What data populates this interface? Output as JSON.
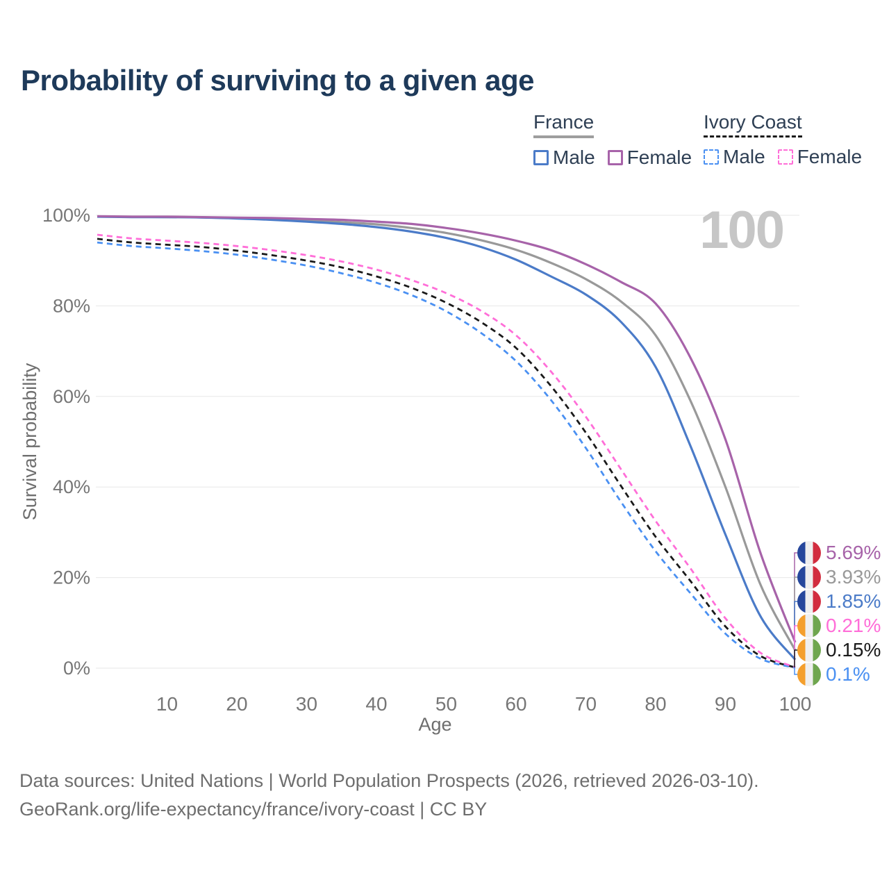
{
  "header": {
    "title": "Probability of surviving to a given age"
  },
  "legend": {
    "groups": [
      {
        "label": "France",
        "line_style": "solid",
        "underline_color": "#9e9e9e",
        "items": [
          {
            "label": "Male",
            "color": "#4b7bc8"
          },
          {
            "label": "Female",
            "color": "#a763a9"
          }
        ]
      },
      {
        "label": "Ivory Coast",
        "line_style": "dashed",
        "underline_color": "#1a1a1a",
        "items": [
          {
            "label": "Male",
            "color": "#4a90f2"
          },
          {
            "label": "Female",
            "color": "#ff6ed8"
          }
        ]
      }
    ]
  },
  "flags": {
    "FR": [
      "#26479c",
      "#efefef",
      "#d22d3f"
    ],
    "CI": [
      "#f49f2d",
      "#efefef",
      "#6fa64f"
    ]
  },
  "chart_data": {
    "type": "line",
    "title": "Probability of surviving to a given age",
    "xlabel": "Age",
    "ylabel": "Survival probability",
    "xlim": [
      0,
      100
    ],
    "ylim": [
      0,
      100
    ],
    "grid": "horizontal",
    "legend_position": "top-right",
    "hover_age_label": "100",
    "x_ticks": [
      10,
      20,
      30,
      40,
      50,
      60,
      70,
      80,
      90,
      100
    ],
    "y_ticks": [
      {
        "value": 0,
        "label": "0%"
      },
      {
        "value": 20,
        "label": "20%"
      },
      {
        "value": 40,
        "label": "40%"
      },
      {
        "value": 60,
        "label": "60%"
      },
      {
        "value": 80,
        "label": "80%"
      },
      {
        "value": 100,
        "label": "100%"
      }
    ],
    "x": [
      0,
      5,
      10,
      15,
      20,
      25,
      30,
      35,
      40,
      45,
      50,
      55,
      60,
      65,
      70,
      75,
      80,
      85,
      90,
      95,
      100
    ],
    "series": [
      {
        "name": "France Both sexes",
        "country": "France",
        "sex": "Both sexes",
        "color": "#999999",
        "dash": "solid",
        "flag": "FR",
        "end_label": "3.93%",
        "values": [
          99.75,
          99.65,
          99.6,
          99.55,
          99.4,
          99.2,
          98.9,
          98.5,
          98.0,
          97.2,
          96.1,
          94.5,
          92.4,
          89.5,
          85.9,
          81.0,
          73.5,
          59.0,
          40.0,
          18.5,
          3.93
        ]
      },
      {
        "name": "France Male",
        "country": "France",
        "sex": "Male",
        "color": "#4b7bc8",
        "dash": "solid",
        "flag": "FR",
        "end_label": "1.85%",
        "values": [
          99.7,
          99.6,
          99.6,
          99.5,
          99.3,
          99.0,
          98.6,
          98.1,
          97.4,
          96.4,
          95.0,
          93.0,
          90.2,
          86.5,
          82.5,
          76.5,
          66.5,
          49.0,
          29.5,
          11.5,
          1.85
        ]
      },
      {
        "name": "France Female",
        "country": "France",
        "sex": "Female",
        "color": "#a763a9",
        "dash": "solid",
        "flag": "FR",
        "end_label": "5.69%",
        "values": [
          99.8,
          99.7,
          99.7,
          99.6,
          99.5,
          99.4,
          99.2,
          99.0,
          98.6,
          98.1,
          97.2,
          96.0,
          94.4,
          92.3,
          89.2,
          85.3,
          80.5,
          68.5,
          50.5,
          25.5,
          5.69
        ]
      },
      {
        "name": "Ivory Coast Both sexes",
        "country": "Ivory Coast",
        "sex": "Both sexes",
        "color": "#1a1a1a",
        "dash": "dashed",
        "flag": "CI",
        "end_label": "0.15%",
        "values": [
          94.8,
          94.0,
          93.5,
          93.0,
          92.2,
          91.2,
          90.0,
          88.5,
          86.5,
          84.0,
          80.7,
          76.4,
          70.7,
          62.3,
          52.0,
          40.3,
          29.0,
          19.2,
          9.2,
          2.7,
          0.15
        ]
      },
      {
        "name": "Ivory Coast Male",
        "country": "Ivory Coast",
        "sex": "Male",
        "color": "#4a90f2",
        "dash": "dashed",
        "flag": "CI",
        "end_label": "0.1%",
        "values": [
          94.0,
          93.2,
          92.7,
          92.1,
          91.3,
          90.2,
          88.9,
          87.2,
          85.1,
          82.4,
          78.8,
          74.0,
          67.8,
          59.2,
          48.6,
          36.8,
          25.8,
          16.5,
          7.6,
          2.1,
          0.1
        ]
      },
      {
        "name": "Ivory Coast Female",
        "country": "Ivory Coast",
        "sex": "Female",
        "color": "#ff6ed8",
        "dash": "dashed",
        "flag": "CI",
        "end_label": "0.21%",
        "values": [
          95.7,
          94.9,
          94.4,
          93.9,
          93.2,
          92.3,
          91.2,
          89.8,
          88.0,
          85.7,
          82.8,
          78.9,
          73.5,
          65.5,
          55.5,
          44.0,
          32.5,
          22.0,
          11.0,
          3.4,
          0.21
        ]
      }
    ]
  },
  "footer": {
    "line1": "Data sources: United Nations | World Population Prospects (2026, retrieved 2026-03-10).",
    "line2": "GeoRank.org/life-expectancy/france/ivory-coast | CC BY"
  }
}
